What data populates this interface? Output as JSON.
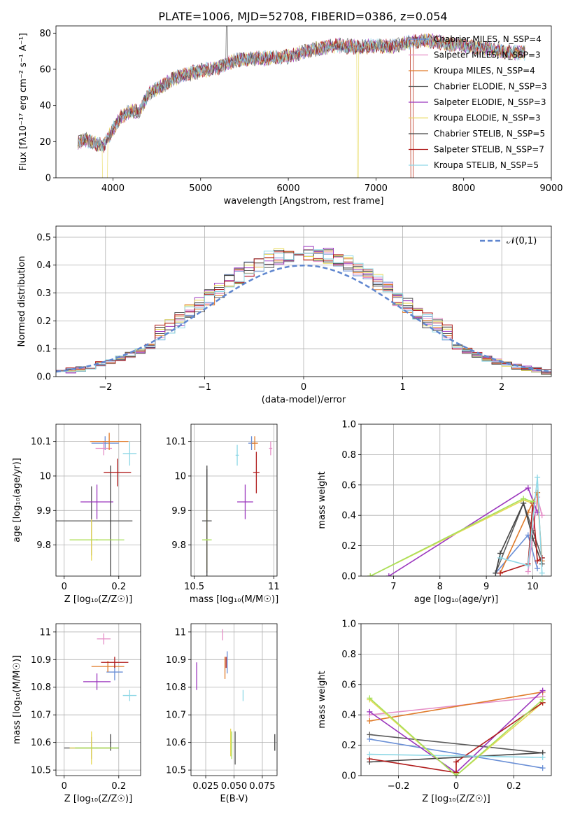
{
  "figure_title": "PLATE=1006, MJD=52708, FIBERID=0386, z=0.054",
  "colors": [
    "#6a8fd6",
    "#e58fc7",
    "#e07b2a",
    "#5b5b5b",
    "#9b36bd",
    "#e8d95a",
    "#444444",
    "#b01c1c",
    "#8fd8e6",
    "#a6e05a"
  ],
  "chart_data": [
    {
      "id": "spectrum",
      "type": "line",
      "title": "PLATE=1006, MJD=52708, FIBERID=0386, z=0.054",
      "xlabel": "wavelength [Angstrom, rest frame]",
      "ylabel": "Flux [fλ10⁻¹⁷ erg cm⁻² s⁻¹ A⁻¹]",
      "xlim": [
        3350,
        9000
      ],
      "ylim": [
        0,
        84
      ],
      "xticks": [
        4000,
        5000,
        6000,
        7000,
        8000,
        9000
      ],
      "yticks": [
        0,
        20,
        40,
        60,
        80
      ],
      "legend_position": "top-right",
      "legend": [
        "Chabrier MILES, N_SSP=4",
        "Salpeter MILES, N_SSP=3",
        "Kroupa MILES, N_SSP=4",
        "Chabrier ELODIE, N_SSP=3",
        "Salpeter ELODIE, N_SSP=3",
        "Kroupa ELODIE, N_SSP=3",
        "Chabrier STELIB, N_SSP=5",
        "Salpeter STELIB, N_SSP=7",
        "Kroupa STELIB, N_SSP=5"
      ],
      "series_colors": [
        "#6a8fd6",
        "#e58fc7",
        "#e07b2a",
        "#5b5b5b",
        "#9b36bd",
        "#e8d95a",
        "#444444",
        "#b01c1c",
        "#8fd8e6"
      ],
      "continuum": [
        [
          3600,
          20
        ],
        [
          3700,
          21
        ],
        [
          3800,
          19
        ],
        [
          3900,
          18
        ],
        [
          4000,
          27
        ],
        [
          4100,
          34
        ],
        [
          4200,
          37
        ],
        [
          4300,
          36
        ],
        [
          4400,
          46
        ],
        [
          4500,
          49
        ],
        [
          4700,
          55
        ],
        [
          4900,
          58
        ],
        [
          5000,
          59
        ],
        [
          5200,
          61
        ],
        [
          5400,
          65
        ],
        [
          5600,
          66
        ],
        [
          5800,
          66
        ],
        [
          6000,
          67
        ],
        [
          6200,
          70
        ],
        [
          6400,
          72
        ],
        [
          6600,
          73
        ],
        [
          6800,
          72
        ],
        [
          7000,
          73
        ],
        [
          7200,
          73
        ],
        [
          7400,
          75
        ],
        [
          7600,
          76
        ],
        [
          7800,
          74
        ],
        [
          8000,
          73
        ],
        [
          8200,
          72
        ],
        [
          8400,
          70
        ],
        [
          8700,
          69
        ]
      ],
      "gaps": [
        [
          3910,
          "down"
        ],
        [
          6790,
          "down"
        ],
        [
          7410,
          "down"
        ],
        [
          5300,
          "up"
        ]
      ]
    },
    {
      "id": "residuals",
      "type": "histogram",
      "xlabel": "(data-model)/error",
      "ylabel": "Normed distribution",
      "xlim": [
        -2.5,
        2.5
      ],
      "ylim": [
        0,
        0.54
      ],
      "xticks": [
        -2,
        -1,
        0,
        1,
        2
      ],
      "yticks": [
        0.0,
        0.1,
        0.2,
        0.3,
        0.4,
        0.5
      ],
      "legend_position": "top-right",
      "legend": [
        "𝒩(0,1)"
      ],
      "bin_width": 0.1,
      "reference": "normal(0,1)"
    },
    {
      "id": "age-vs-Z",
      "type": "scatter",
      "xlabel": "Z [log₁₀(Z/Z☉)]",
      "ylabel": "age  [log₁₀(age/yr)]",
      "xlim": [
        -0.03,
        0.28
      ],
      "ylim": [
        9.71,
        10.15
      ],
      "xticks": [
        0.0,
        0.2
      ],
      "yticks": [
        9.8,
        9.9,
        10.0,
        10.1
      ],
      "points": [
        {
          "x": 0.15,
          "y": 10.095,
          "xerr": 0.05,
          "yerr": 0.02,
          "c": 0
        },
        {
          "x": 0.145,
          "y": 10.08,
          "xerr": 0.03,
          "yerr": 0.02,
          "c": 1
        },
        {
          "x": 0.165,
          "y": 10.1,
          "xerr": 0.07,
          "yerr": 0.025,
          "c": 2
        },
        {
          "x": 0.1,
          "y": 9.87,
          "xerr": 0.15,
          "yerr": 0.1,
          "c": 3
        },
        {
          "x": 0.12,
          "y": 9.925,
          "xerr": 0.06,
          "yerr": 0.05,
          "c": 4
        },
        {
          "x": 0.1,
          "y": 9.815,
          "xerr": 0.08,
          "yerr": 0.06,
          "c": 5
        },
        {
          "x": 0.17,
          "y": 9.87,
          "xerr": 0.002,
          "yerr": 0.16,
          "c": 6
        },
        {
          "x": 0.195,
          "y": 10.01,
          "xerr": 0.05,
          "yerr": 0.04,
          "c": 7
        },
        {
          "x": 0.24,
          "y": 10.065,
          "xerr": 0.025,
          "yerr": 0.035,
          "c": 8
        },
        {
          "x": 0.12,
          "y": 9.815,
          "xerr": 0.1,
          "yerr": 0.002,
          "c": 9
        }
      ]
    },
    {
      "id": "age-vs-mass",
      "type": "scatter",
      "xlabel": "mass [log₁₀(M/M☉)]",
      "ylabel": "",
      "xlim": [
        10.48,
        11.02
      ],
      "ylim": [
        9.71,
        10.15
      ],
      "xticks": [
        10.5,
        11.0
      ],
      "yticks": [
        9.8,
        9.9,
        10.0,
        10.1
      ],
      "points": [
        {
          "x": 10.86,
          "y": 10.095,
          "xerr": 0.02,
          "yerr": 0.02,
          "c": 0
        },
        {
          "x": 10.98,
          "y": 10.08,
          "xerr": 0.01,
          "yerr": 0.02,
          "c": 1
        },
        {
          "x": 10.88,
          "y": 10.095,
          "xerr": 0.02,
          "yerr": 0.02,
          "c": 2
        },
        {
          "x": 10.58,
          "y": 9.87,
          "xerr": 0.03,
          "yerr": 0.15,
          "c": 3
        },
        {
          "x": 10.82,
          "y": 9.925,
          "xerr": 0.05,
          "yerr": 0.05,
          "c": 4
        },
        {
          "x": 10.58,
          "y": 9.815,
          "xerr": 0.02,
          "yerr": 0.09,
          "c": 5
        },
        {
          "x": 10.58,
          "y": 9.87,
          "xerr": 0.002,
          "yerr": 0.16,
          "c": 6
        },
        {
          "x": 10.89,
          "y": 10.01,
          "xerr": 0.02,
          "yerr": 0.06,
          "c": 7
        },
        {
          "x": 10.77,
          "y": 10.06,
          "xerr": 0.01,
          "yerr": 0.03,
          "c": 8
        },
        {
          "x": 10.58,
          "y": 9.815,
          "xerr": 0.03,
          "yerr": 0.002,
          "c": 9
        }
      ]
    },
    {
      "id": "mass-weight-vs-age",
      "type": "line",
      "xlabel": "age  [log₁₀(age/yr)]",
      "ylabel": "mass weight",
      "xlim": [
        6.3,
        10.4
      ],
      "ylim": [
        0,
        1.0
      ],
      "xticks": [
        6,
        7,
        8,
        9,
        10
      ],
      "yticks": [
        0.0,
        0.2,
        0.4,
        0.6,
        0.8,
        1.0
      ],
      "series": [
        {
          "c": 0,
          "x": [
            9.2,
            9.9,
            10.1
          ],
          "y": [
            0.02,
            0.27,
            0.05
          ]
        },
        {
          "c": 1,
          "x": [
            9.9,
            10.1,
            10.2
          ],
          "y": [
            0.03,
            0.52,
            0.4
          ]
        },
        {
          "c": 2,
          "x": [
            9.3,
            9.9,
            10.1,
            10.2
          ],
          "y": [
            0.02,
            0.42,
            0.55,
            0.1
          ]
        },
        {
          "c": 3,
          "x": [
            9.2,
            9.8,
            10.0,
            10.2
          ],
          "y": [
            0.02,
            0.48,
            0.3,
            0.12
          ]
        },
        {
          "c": 4,
          "x": [
            6.9,
            9.9,
            10.1
          ],
          "y": [
            0.0,
            0.58,
            0.42
          ]
        },
        {
          "c": 5,
          "x": [
            6.5,
            9.8,
            10.0
          ],
          "y": [
            0.0,
            0.5,
            0.48
          ]
        },
        {
          "c": 6,
          "x": [
            9.2,
            9.3,
            9.8,
            10.0,
            10.2
          ],
          "y": [
            0.02,
            0.15,
            0.48,
            0.25,
            0.08
          ]
        },
        {
          "c": 7,
          "x": [
            9.3,
            9.9,
            10.0,
            10.1,
            10.2
          ],
          "y": [
            0.02,
            0.08,
            0.48,
            0.1,
            0.12
          ]
        },
        {
          "c": 8,
          "x": [
            9.3,
            9.9,
            10.1,
            10.2
          ],
          "y": [
            0.12,
            0.07,
            0.65,
            0.02
          ]
        },
        {
          "c": 9,
          "x": [
            6.5,
            9.8,
            10.0
          ],
          "y": [
            0.0,
            0.51,
            0.49
          ]
        }
      ]
    },
    {
      "id": "mass-vs-Z",
      "type": "scatter",
      "xlabel": "Z [log₁₀(Z/Z☉)]",
      "ylabel": "mass [log₁₀(M/M☉)]",
      "xlim": [
        -0.03,
        0.28
      ],
      "ylim": [
        10.48,
        11.03
      ],
      "xticks": [
        0.0,
        0.2
      ],
      "yticks": [
        10.5,
        10.6,
        10.7,
        10.8,
        10.9,
        11.0
      ],
      "points": [
        {
          "x": 0.185,
          "y": 10.855,
          "xerr": 0.03,
          "yerr": 0.03,
          "c": 0
        },
        {
          "x": 0.145,
          "y": 10.975,
          "xerr": 0.025,
          "yerr": 0.02,
          "c": 1
        },
        {
          "x": 0.16,
          "y": 10.875,
          "xerr": 0.06,
          "yerr": 0.02,
          "c": 2
        },
        {
          "x": 0.1,
          "y": 10.58,
          "xerr": 0.1,
          "yerr": 0.04,
          "c": 3
        },
        {
          "x": 0.12,
          "y": 10.82,
          "xerr": 0.05,
          "yerr": 0.03,
          "c": 4
        },
        {
          "x": 0.1,
          "y": 10.58,
          "xerr": 0.08,
          "yerr": 0.06,
          "c": 5
        },
        {
          "x": 0.17,
          "y": 10.6,
          "xerr": 0.002,
          "yerr": 0.03,
          "c": 6
        },
        {
          "x": 0.185,
          "y": 10.89,
          "xerr": 0.05,
          "yerr": 0.02,
          "c": 7
        },
        {
          "x": 0.24,
          "y": 10.77,
          "xerr": 0.025,
          "yerr": 0.02,
          "c": 8
        },
        {
          "x": 0.12,
          "y": 10.58,
          "xerr": 0.08,
          "yerr": 0.002,
          "c": 9
        }
      ]
    },
    {
      "id": "mass-vs-EBV",
      "type": "scatter",
      "xlabel": "E(B-V)",
      "ylabel": "",
      "xlim": [
        0.012,
        0.088
      ],
      "ylim": [
        10.48,
        11.03
      ],
      "xticks": [
        0.025,
        0.05,
        0.075
      ],
      "tick_labels": [
        "0.025",
        "0.050",
        "0.075"
      ],
      "yticks": [
        10.5,
        10.6,
        10.7,
        10.8,
        10.9,
        11.0
      ],
      "points": [
        {
          "x": 0.044,
          "y": 10.89,
          "xerr": 0.0,
          "yerr": 0.04,
          "c": 0
        },
        {
          "x": 0.04,
          "y": 10.99,
          "xerr": 0.0,
          "yerr": 0.02,
          "c": 1
        },
        {
          "x": 0.042,
          "y": 10.87,
          "xerr": 0.0,
          "yerr": 0.04,
          "c": 2
        },
        {
          "x": 0.051,
          "y": 10.58,
          "xerr": 0.0,
          "yerr": 0.06,
          "c": 3
        },
        {
          "x": 0.017,
          "y": 10.84,
          "xerr": 0.0,
          "yerr": 0.05,
          "c": 4
        },
        {
          "x": 0.047,
          "y": 10.6,
          "xerr": 0.0,
          "yerr": 0.05,
          "c": 5
        },
        {
          "x": 0.086,
          "y": 10.6,
          "xerr": 0.0,
          "yerr": 0.03,
          "c": 6
        },
        {
          "x": 0.043,
          "y": 10.89,
          "xerr": 0.0,
          "yerr": 0.02,
          "c": 7
        },
        {
          "x": 0.058,
          "y": 10.77,
          "xerr": 0.0,
          "yerr": 0.02,
          "c": 8
        },
        {
          "x": 0.048,
          "y": 10.59,
          "xerr": 0.0,
          "yerr": 0.05,
          "c": 9
        }
      ]
    },
    {
      "id": "mass-weight-vs-Z",
      "type": "line",
      "xlabel": "Z [log₁₀(Z/Z☉)]",
      "ylabel": "mass weight",
      "xlim": [
        -0.33,
        0.33
      ],
      "ylim": [
        0,
        1.0
      ],
      "xticks": [
        -0.2,
        0.0,
        0.2
      ],
      "yticks": [
        0.0,
        0.2,
        0.4,
        0.6,
        0.8,
        1.0
      ],
      "series": [
        {
          "c": 0,
          "x": [
            -0.3,
            0.3
          ],
          "y": [
            0.24,
            0.05
          ]
        },
        {
          "c": 1,
          "x": [
            -0.3,
            0.3
          ],
          "y": [
            0.4,
            0.52
          ]
        },
        {
          "c": 2,
          "x": [
            -0.3,
            0.3
          ],
          "y": [
            0.36,
            0.55
          ]
        },
        {
          "c": 3,
          "x": [
            -0.3,
            0.3
          ],
          "y": [
            0.27,
            0.15
          ]
        },
        {
          "c": 4,
          "x": [
            -0.3,
            0.0,
            0.3
          ],
          "y": [
            0.42,
            0.02,
            0.56
          ]
        },
        {
          "c": 5,
          "x": [
            -0.3,
            0.0,
            0.3
          ],
          "y": [
            0.5,
            0.0,
            0.48
          ]
        },
        {
          "c": 6,
          "x": [
            -0.3,
            0.3
          ],
          "y": [
            0.09,
            0.15
          ]
        },
        {
          "c": 7,
          "x": [
            -0.3,
            0.0,
            0.0,
            0.3
          ],
          "y": [
            0.11,
            0.02,
            0.09,
            0.48
          ]
        },
        {
          "c": 8,
          "x": [
            -0.3,
            0.3
          ],
          "y": [
            0.14,
            0.12
          ]
        },
        {
          "c": 9,
          "x": [
            -0.3,
            0.0,
            0.3
          ],
          "y": [
            0.51,
            0.0,
            0.5
          ]
        }
      ]
    }
  ]
}
